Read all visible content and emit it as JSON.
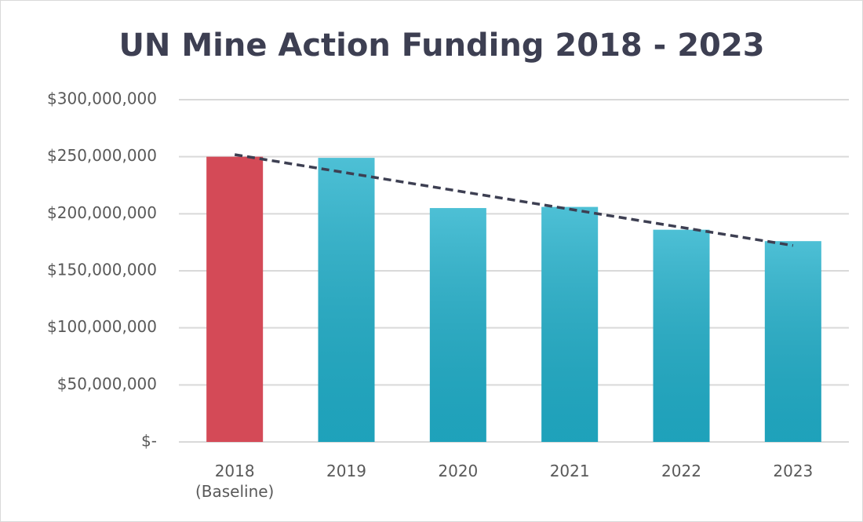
{
  "chart_data": {
    "type": "bar",
    "title": "UN Mine Action Funding 2018 - 2023",
    "categories": [
      "2018 (Baseline)",
      "2019",
      "2020",
      "2021",
      "2022",
      "2023"
    ],
    "values": [
      250000000,
      249000000,
      205000000,
      206000000,
      186000000,
      176000000
    ],
    "colors": [
      "#d44a57",
      "#21b0cb",
      "#21b0cb",
      "#21b0cb",
      "#21b0cb",
      "#21b0cb"
    ],
    "ylim": [
      0,
      300000000
    ],
    "yticks": [
      {
        "value": 0,
        "label": "$-"
      },
      {
        "value": 50000000,
        "label": "$50,000,000"
      },
      {
        "value": 100000000,
        "label": "$100,000,000"
      },
      {
        "value": 150000000,
        "label": "$150,000,000"
      },
      {
        "value": 200000000,
        "label": "$200,000,000"
      },
      {
        "value": 250000000,
        "label": "$250,000,000"
      },
      {
        "value": 300000000,
        "label": "$300,000,000"
      }
    ],
    "grid": true,
    "trendline": true
  }
}
